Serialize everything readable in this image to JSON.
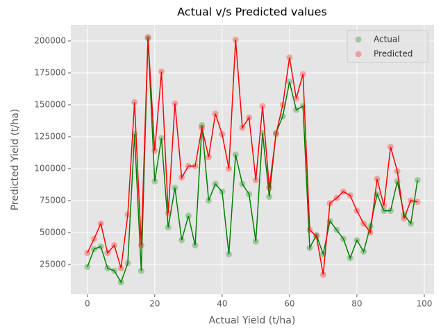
{
  "chart_data": {
    "type": "line",
    "title": "Actual v/s Predicted values",
    "x_label": "Actual Yield (t/ha)",
    "y_label": "Predicted Yield (t/ha)",
    "x": [
      0,
      2,
      4,
      6,
      8,
      10,
      12,
      14,
      16,
      18,
      20,
      22,
      24,
      26,
      28,
      30,
      32,
      34,
      36,
      38,
      40,
      42,
      44,
      46,
      48,
      50,
      52,
      54,
      56,
      58,
      60,
      62,
      64,
      66,
      68,
      70,
      72,
      74,
      76,
      78,
      80,
      82,
      84,
      86,
      88,
      90,
      92,
      94,
      96,
      98
    ],
    "series": [
      {
        "name": "Actual",
        "color": "#008000",
        "values": [
          23000,
          37000,
          39000,
          22000,
          20000,
          11000,
          26000,
          127000,
          20000,
          202000,
          90000,
          124000,
          54000,
          85000,
          44000,
          63000,
          40000,
          134000,
          75000,
          88000,
          82000,
          33000,
          111000,
          88000,
          80000,
          43000,
          128000,
          78000,
          128000,
          141000,
          168000,
          146000,
          149000,
          38000,
          48000,
          33000,
          59000,
          52000,
          45000,
          30000,
          44000,
          35000,
          55000,
          80000,
          67000,
          67000,
          90000,
          64000,
          57000,
          91000
        ]
      },
      {
        "name": "Predicted",
        "color": "#ff0000",
        "values": [
          34000,
          45000,
          57000,
          34000,
          40000,
          22000,
          64000,
          152000,
          40000,
          203000,
          114000,
          176000,
          65000,
          151000,
          93000,
          102000,
          102000,
          132000,
          109000,
          143000,
          127000,
          100000,
          201000,
          132000,
          140000,
          91000,
          149000,
          85000,
          127000,
          150000,
          187000,
          155000,
          174000,
          52000,
          47000,
          17000,
          73000,
          77000,
          82000,
          79000,
          67000,
          57000,
          50000,
          92000,
          71000,
          117000,
          98000,
          61000,
          75000,
          74000
        ]
      }
    ],
    "xlim": [
      -4.9,
      102.9
    ],
    "ylim": [
      1600,
      212500
    ],
    "xticks": [
      0,
      20,
      40,
      60,
      80,
      100
    ],
    "yticks": [
      25000,
      50000,
      75000,
      100000,
      125000,
      150000,
      175000,
      200000
    ],
    "grid": true,
    "legend": "upper right"
  }
}
